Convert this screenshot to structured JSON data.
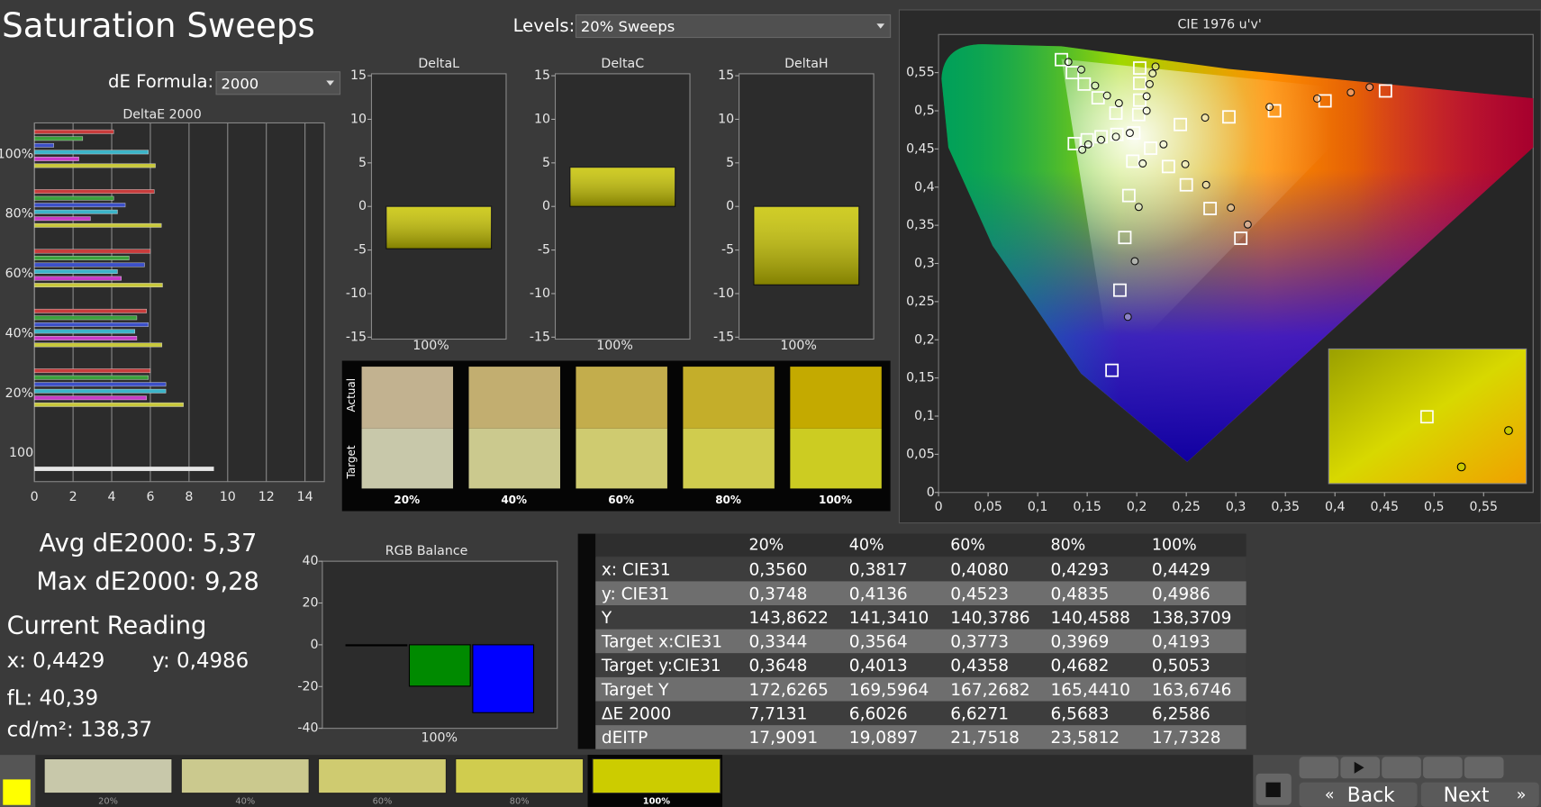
{
  "header": {
    "title": "Saturation Sweeps",
    "levels_label": "Levels:",
    "levels_value": "20% Sweeps",
    "formula_label": "dE Formula:",
    "formula_value": "2000"
  },
  "deltae": {
    "title": "DeltaE 2000",
    "xlim": [
      0,
      15
    ],
    "xticks": [
      0,
      2,
      4,
      6,
      8,
      10,
      12,
      14
    ],
    "groups": [
      {
        "label": "100%",
        "bars": [
          {
            "color": "#c83c3c",
            "value": 4.1
          },
          {
            "color": "#3ca03c",
            "value": 2.5
          },
          {
            "color": "#3c50c8",
            "value": 1.0
          },
          {
            "color": "#3cb4c8",
            "value": 5.9
          },
          {
            "color": "#c83cc8",
            "value": 2.3
          },
          {
            "color": "#c8c83c",
            "value": 6.26
          }
        ]
      },
      {
        "label": "80%",
        "bars": [
          {
            "color": "#c83c3c",
            "value": 6.2
          },
          {
            "color": "#3ca03c",
            "value": 4.1
          },
          {
            "color": "#3c50c8",
            "value": 4.7
          },
          {
            "color": "#3cb4c8",
            "value": 4.3
          },
          {
            "color": "#c83cc8",
            "value": 2.9
          },
          {
            "color": "#c8c83c",
            "value": 6.57
          }
        ]
      },
      {
        "label": "60%",
        "bars": [
          {
            "color": "#c83c3c",
            "value": 6.0
          },
          {
            "color": "#3ca03c",
            "value": 4.9
          },
          {
            "color": "#3c50c8",
            "value": 5.7
          },
          {
            "color": "#3cb4c8",
            "value": 4.3
          },
          {
            "color": "#c83cc8",
            "value": 4.5
          },
          {
            "color": "#c8c83c",
            "value": 6.63
          }
        ]
      },
      {
        "label": "40%",
        "bars": [
          {
            "color": "#c83c3c",
            "value": 5.8
          },
          {
            "color": "#3ca03c",
            "value": 5.3
          },
          {
            "color": "#3c50c8",
            "value": 5.9
          },
          {
            "color": "#3cb4c8",
            "value": 5.2
          },
          {
            "color": "#c83cc8",
            "value": 5.3
          },
          {
            "color": "#c8c83c",
            "value": 6.6
          }
        ]
      },
      {
        "label": "20%",
        "bars": [
          {
            "color": "#c83c3c",
            "value": 6.0
          },
          {
            "color": "#3ca03c",
            "value": 5.9
          },
          {
            "color": "#3c50c8",
            "value": 6.8
          },
          {
            "color": "#3cb4c8",
            "value": 6.8
          },
          {
            "color": "#c83cc8",
            "value": 5.8
          },
          {
            "color": "#c8c83c",
            "value": 7.71
          }
        ]
      },
      {
        "label": "100",
        "bars": [
          {
            "color": "#e6e6e6",
            "value": 9.28
          }
        ]
      }
    ]
  },
  "components": [
    {
      "title": "DeltaL",
      "ylim": [
        -15,
        15
      ],
      "yticks": [
        -15,
        -10,
        -5,
        0,
        5,
        10,
        15
      ],
      "category": "100%",
      "value": -4.85,
      "color": "#c8c400"
    },
    {
      "title": "DeltaC",
      "ylim": [
        -15,
        15
      ],
      "yticks": [
        -15,
        -10,
        -5,
        0,
        5,
        10,
        15
      ],
      "category": "100%",
      "value": 4.5,
      "color": "#c8c400"
    },
    {
      "title": "DeltaH",
      "ylim": [
        -15,
        15
      ],
      "yticks": [
        -15,
        -10,
        -5,
        0,
        5,
        10,
        15
      ],
      "category": "100%",
      "value": -9.0,
      "color": "#c8c400"
    }
  ],
  "swatches": {
    "actual_label": "Actual",
    "target_label": "Target",
    "categories": [
      "20%",
      "40%",
      "60%",
      "80%",
      "100%"
    ],
    "actual_colors": [
      "#c2b290",
      "#c2ae70",
      "#c3ad4c",
      "#c4ae2a",
      "#c4aa00"
    ],
    "target_colors": [
      "#c8c8aa",
      "#cbc98e",
      "#cfcb70",
      "#d0cc4e",
      "#cccc22"
    ]
  },
  "cie": {
    "title": "CIE 1976 u'v'",
    "xlim": [
      0,
      0.6
    ],
    "ylim": [
      0,
      0.6
    ],
    "xticks": [
      0,
      {
        "value": 0.05,
        "label": "0,05"
      },
      {
        "value": 0.1,
        "label": "0,1"
      },
      {
        "value": 0.15,
        "label": "0,15"
      },
      {
        "value": 0.2,
        "label": "0,2"
      },
      {
        "value": 0.25,
        "label": "0,25"
      },
      {
        "value": 0.3,
        "label": "0,3"
      },
      {
        "value": 0.35,
        "label": "0,35"
      },
      {
        "value": 0.4,
        "label": "0,4"
      },
      {
        "value": 0.45,
        "label": "0,45"
      },
      {
        "value": 0.5,
        "label": "0,5"
      },
      {
        "value": 0.55,
        "label": "0,55"
      }
    ],
    "yticks": [
      0,
      {
        "value": 0.05,
        "label": "0,05"
      },
      {
        "value": 0.1,
        "label": "0,1"
      },
      {
        "value": 0.15,
        "label": "0,15"
      },
      {
        "value": 0.2,
        "label": "0,2"
      },
      {
        "value": 0.25,
        "label": "0,25"
      },
      {
        "value": 0.3,
        "label": "0,3"
      },
      {
        "value": 0.35,
        "label": "0,35"
      },
      {
        "value": 0.4,
        "label": "0,4"
      },
      {
        "value": 0.45,
        "label": "0,45"
      },
      {
        "value": 0.5,
        "label": "0,5"
      },
      {
        "value": 0.55,
        "label": "0,55"
      }
    ],
    "targets": {
      "u": [
        0.124,
        0.135,
        0.147,
        0.161,
        0.179,
        0.203,
        0.203,
        0.203,
        0.202,
        0.244,
        0.293,
        0.339,
        0.39,
        0.451,
        0.214,
        0.232,
        0.25,
        0.274,
        0.305,
        0.196,
        0.192,
        0.188,
        0.183,
        0.175,
        0.137,
        0.15,
        0.164,
        0.18,
        0.197
      ],
      "v": [
        0.567,
        0.55,
        0.535,
        0.517,
        0.497,
        0.556,
        0.536,
        0.514,
        0.495,
        0.482,
        0.492,
        0.5,
        0.513,
        0.526,
        0.451,
        0.427,
        0.403,
        0.372,
        0.333,
        0.434,
        0.389,
        0.334,
        0.265,
        0.16,
        0.457,
        0.462,
        0.466,
        0.469,
        0.471
      ]
    },
    "measured": {
      "u": [
        0.131,
        0.144,
        0.158,
        0.17,
        0.182,
        0.219,
        0.216,
        0.213,
        0.21,
        0.21,
        0.269,
        0.334,
        0.382,
        0.416,
        0.435,
        0.227,
        0.249,
        0.27,
        0.295,
        0.312,
        0.206,
        0.202,
        0.198,
        0.191,
        0.145,
        0.151,
        0.164,
        0.179,
        0.193
      ],
      "v": [
        0.564,
        0.554,
        0.533,
        0.52,
        0.51,
        0.558,
        0.549,
        0.535,
        0.519,
        0.5,
        0.491,
        0.505,
        0.516,
        0.524,
        0.531,
        0.456,
        0.43,
        0.403,
        0.373,
        0.351,
        0.431,
        0.374,
        0.303,
        0.23,
        0.449,
        0.456,
        0.462,
        0.466,
        0.471
      ]
    }
  },
  "stats": {
    "avg": "Avg dE2000: 5,37",
    "max": "Max dE2000: 9,28",
    "current": "Current Reading",
    "x": "x: 0,4429",
    "y": "y: 0,4986",
    "fl": "fL: 40,39",
    "cdm2": "cd/m²: 138,37"
  },
  "rgb_balance": {
    "title": "RGB Balance",
    "ylim": [
      -40,
      40
    ],
    "yticks": [
      -40,
      -20,
      0,
      20,
      40
    ],
    "category": "100%",
    "series": [
      {
        "color": "#111111",
        "values": [
          0
        ]
      },
      {
        "color": "#008a00",
        "values": [
          -19.8
        ]
      },
      {
        "color": "#0000ff",
        "values": [
          -32.5
        ]
      }
    ]
  },
  "table": {
    "header": [
      "20%",
      "40%",
      "60%",
      "80%",
      "100%"
    ],
    "rows": [
      [
        "x: CIE31",
        "0,3560",
        "0,3817",
        "0,4080",
        "0,4293",
        "0,4429"
      ],
      [
        "y: CIE31",
        "0,3748",
        "0,4136",
        "0,4523",
        "0,4835",
        "0,4986"
      ],
      [
        "Y",
        "143,8622",
        "141,3410",
        "140,3786",
        "140,4588",
        "138,3709"
      ],
      [
        "Target x:CIE31",
        "0,3344",
        "0,3564",
        "0,3773",
        "0,3969",
        "0,4193"
      ],
      [
        "Target y:CIE31",
        "0,3648",
        "0,4013",
        "0,4358",
        "0,4682",
        "0,5053"
      ],
      [
        "Target Y",
        "172,6265",
        "169,5964",
        "167,2682",
        "165,4410",
        "163,6746"
      ],
      [
        "ΔE 2000",
        "7,7131",
        "6,6026",
        "6,6271",
        "6,5683",
        "6,2586"
      ],
      [
        "dEITP",
        "17,9091",
        "19,0897",
        "21,7518",
        "23,5812",
        "17,7328"
      ]
    ]
  },
  "footer": {
    "swatches": [
      {
        "label": "20%",
        "color": "#c8c8aa"
      },
      {
        "label": "40%",
        "color": "#cbc98e"
      },
      {
        "label": "60%",
        "color": "#cfcb70"
      },
      {
        "label": "80%",
        "color": "#d0cc4e"
      },
      {
        "label": "100%",
        "color": "#cccc00"
      }
    ],
    "back": "Back",
    "next": "Next"
  }
}
